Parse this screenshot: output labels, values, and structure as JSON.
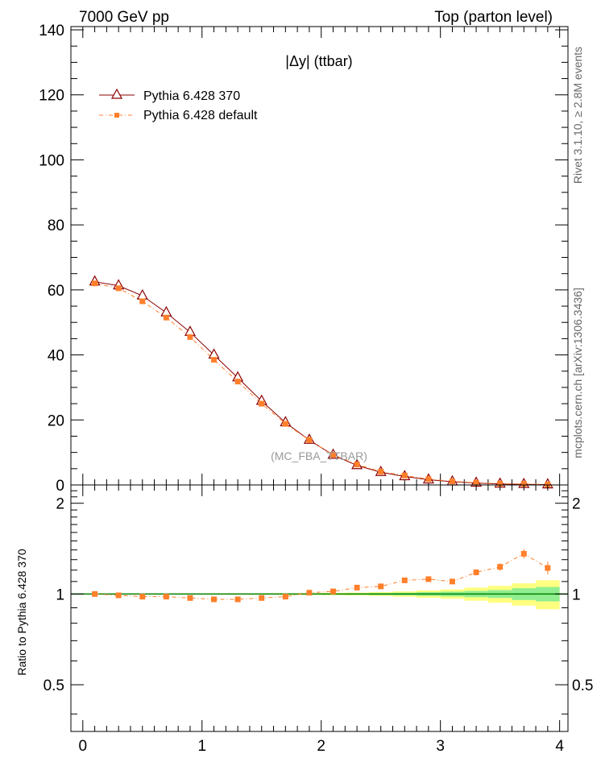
{
  "header": {
    "left": "7000 GeV pp",
    "right": "Top (parton level)"
  },
  "side_labels": {
    "rivet": "Rivet 3.1.10, ≥ 2.8M events",
    "mcplots": "mcplots.cern.ch [arXiv:1306.3436]"
  },
  "colors": {
    "series_370": "#8b0000",
    "series_default": "#ff7f2a",
    "band_inner": "#90ee90",
    "band_outer": "#ffff80",
    "ratio_reference": "#008000"
  },
  "chart_data": [
    {
      "type": "line",
      "title": "|Δy| (ttbar)",
      "analysis_label": "(MC_FBA_TTBAR)",
      "xlim": [
        -0.1,
        4.07
      ],
      "ylim": [
        0,
        141
      ],
      "xticks": [
        "0",
        "1",
        "2",
        "3",
        "4"
      ],
      "yticks": [
        "0",
        "20",
        "40",
        "60",
        "80",
        "100",
        "120",
        "140"
      ],
      "legend_position": "top-left",
      "x": [
        0.1,
        0.3,
        0.5,
        0.7,
        0.9,
        1.1,
        1.3,
        1.5,
        1.7,
        1.9,
        2.1,
        2.3,
        2.5,
        2.7,
        2.9,
        3.1,
        3.3,
        3.5,
        3.7,
        3.9
      ],
      "series": [
        {
          "name": "Pythia 6.428 370",
          "marker": "triangle-open",
          "values": [
            62.5,
            61.3,
            58.2,
            53.0,
            47.0,
            40.0,
            33.0,
            25.8,
            19.2,
            13.8,
            9.2,
            6.0,
            3.9,
            2.6,
            1.6,
            1.0,
            0.6,
            0.3,
            0.2,
            0.1
          ]
        },
        {
          "name": "Pythia 6.428 default",
          "marker": "square-filled",
          "values": [
            62.0,
            60.5,
            56.5,
            51.5,
            45.5,
            38.5,
            31.8,
            25.0,
            18.8,
            13.8,
            9.3,
            6.3,
            4.1,
            2.9,
            1.8,
            1.1,
            0.7,
            0.4,
            0.3,
            0.15
          ]
        }
      ]
    },
    {
      "type": "line",
      "ylabel": "Ratio to Pythia 6.428 370",
      "xlim": [
        -0.1,
        4.07
      ],
      "ylim": [
        0.35,
        2.3
      ],
      "xticks": [
        "0",
        "1",
        "2",
        "3",
        "4"
      ],
      "yticks": [
        "0.5",
        "1",
        "2"
      ],
      "log_y": true,
      "reference": 1.0,
      "x": [
        0.1,
        0.3,
        0.5,
        0.7,
        0.9,
        1.1,
        1.3,
        1.5,
        1.7,
        1.9,
        2.1,
        2.3,
        2.5,
        2.7,
        2.9,
        3.1,
        3.3,
        3.5,
        3.7,
        3.9
      ],
      "series": [
        {
          "name": "Pythia 6.428 default",
          "values": [
            1.0,
            0.99,
            0.98,
            0.98,
            0.97,
            0.96,
            0.96,
            0.97,
            0.98,
            1.01,
            1.02,
            1.05,
            1.06,
            1.11,
            1.12,
            1.1,
            1.18,
            1.23,
            1.36,
            1.22
          ],
          "errors": [
            0.003,
            0.003,
            0.003,
            0.003,
            0.004,
            0.004,
            0.005,
            0.005,
            0.006,
            0.007,
            0.008,
            0.01,
            0.012,
            0.015,
            0.018,
            0.022,
            0.028,
            0.035,
            0.05,
            0.06
          ]
        }
      ],
      "band_inner": [
        0.002,
        0.002,
        0.002,
        0.002,
        0.002,
        0.002,
        0.003,
        0.003,
        0.003,
        0.004,
        0.005,
        0.006,
        0.008,
        0.01,
        0.014,
        0.018,
        0.024,
        0.03,
        0.045,
        0.055
      ],
      "band_outer": [
        0.003,
        0.003,
        0.003,
        0.003,
        0.004,
        0.004,
        0.005,
        0.005,
        0.006,
        0.007,
        0.009,
        0.011,
        0.015,
        0.02,
        0.028,
        0.036,
        0.05,
        0.065,
        0.085,
        0.11
      ]
    }
  ]
}
